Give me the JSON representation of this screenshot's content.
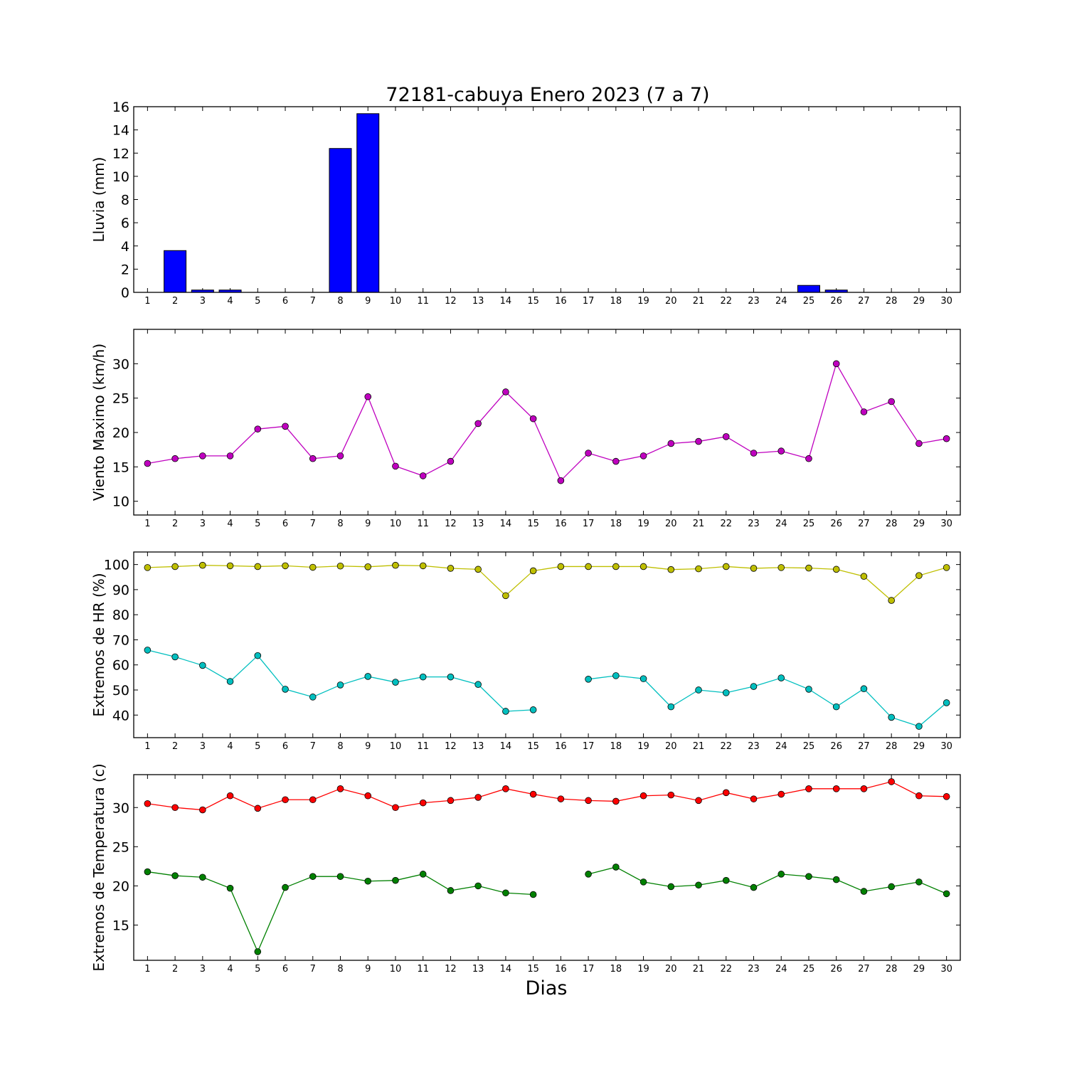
{
  "figure_title": "72181-cabuya Enero 2023  (7 a 7)",
  "xlabel": "Dias",
  "chart_data": [
    {
      "type": "bar",
      "ylabel": "Lluvia (mm)",
      "ylim": [
        0,
        16
      ],
      "yticks": [
        0,
        2,
        4,
        6,
        8,
        10,
        12,
        14,
        16
      ],
      "xlim": [
        0.5,
        30.5
      ],
      "categories": [
        1,
        2,
        3,
        4,
        5,
        6,
        7,
        8,
        9,
        10,
        11,
        12,
        13,
        14,
        15,
        16,
        17,
        18,
        19,
        20,
        21,
        22,
        23,
        24,
        25,
        26,
        27,
        28,
        29,
        30
      ],
      "series": [
        {
          "color": "#0000ff",
          "values": [
            0,
            3.6,
            0.2,
            0.2,
            0,
            0,
            0,
            12.4,
            15.4,
            0,
            0,
            0,
            0,
            0,
            0,
            0,
            0,
            0,
            0,
            0,
            0,
            0,
            0,
            0,
            0.6,
            0.2,
            0,
            0,
            0,
            0
          ]
        }
      ]
    },
    {
      "type": "line",
      "ylabel": "Viento Maximo (km/h)",
      "ylim": [
        8,
        35
      ],
      "yticks": [
        10,
        15,
        20,
        25,
        30
      ],
      "xlim": [
        0.5,
        30.5
      ],
      "x": [
        1,
        2,
        3,
        4,
        5,
        6,
        7,
        8,
        9,
        10,
        11,
        12,
        13,
        14,
        15,
        16,
        17,
        18,
        19,
        20,
        21,
        22,
        23,
        24,
        25,
        26,
        27,
        28,
        29,
        30
      ],
      "series": [
        {
          "color": "#bf00bf",
          "values": [
            15.5,
            16.2,
            16.6,
            16.6,
            20.5,
            20.9,
            16.2,
            16.6,
            25.2,
            15.1,
            13.7,
            15.8,
            21.3,
            25.9,
            22.0,
            13.0,
            17.0,
            15.8,
            16.6,
            18.4,
            18.7,
            19.4,
            17.0,
            17.3,
            16.2,
            30.0,
            23.0,
            24.5,
            18.4,
            19.1
          ]
        }
      ]
    },
    {
      "type": "line",
      "ylabel": "Extremos de HR (%)",
      "ylim": [
        31,
        105
      ],
      "yticks": [
        40,
        50,
        60,
        70,
        80,
        90,
        100
      ],
      "xlim": [
        0.5,
        30.5
      ],
      "x": [
        1,
        2,
        3,
        4,
        5,
        6,
        7,
        8,
        9,
        10,
        11,
        12,
        13,
        14,
        15,
        16,
        17,
        18,
        19,
        20,
        21,
        22,
        23,
        24,
        25,
        26,
        27,
        28,
        29,
        30
      ],
      "series": [
        {
          "color": "#bfbf00",
          "values": [
            98.8,
            99.2,
            99.7,
            99.5,
            99.2,
            99.5,
            98.9,
            99.4,
            99.1,
            99.7,
            99.5,
            98.5,
            98.1,
            87.6,
            97.5,
            99.2,
            99.2,
            99.2,
            99.2,
            98.0,
            98.3,
            99.2,
            98.5,
            98.8,
            98.6,
            98.1,
            95.3,
            85.7,
            95.6,
            98.8
          ]
        },
        {
          "color": "#00bfbf",
          "values": [
            65.9,
            63.2,
            59.8,
            53.4,
            63.7,
            50.3,
            47.2,
            52.0,
            55.4,
            53.1,
            55.2,
            55.2,
            52.2,
            41.5,
            42.1,
            null,
            54.3,
            55.7,
            54.5,
            43.3,
            50.0,
            48.9,
            51.4,
            54.8,
            50.3,
            43.3,
            50.5,
            39.1,
            35.5,
            44.9
          ]
        }
      ]
    },
    {
      "type": "line",
      "ylabel": "Extremos de Temperatura (c)",
      "ylim": [
        10.5,
        34.2
      ],
      "yticks": [
        15,
        20,
        25,
        30
      ],
      "xlim": [
        0.5,
        30.5
      ],
      "x": [
        1,
        2,
        3,
        4,
        5,
        6,
        7,
        8,
        9,
        10,
        11,
        12,
        13,
        14,
        15,
        16,
        17,
        18,
        19,
        20,
        21,
        22,
        23,
        24,
        25,
        26,
        27,
        28,
        29,
        30
      ],
      "series": [
        {
          "color": "#ff0000",
          "values": [
            30.5,
            30.0,
            29.7,
            31.5,
            29.9,
            31.0,
            31.0,
            32.4,
            31.5,
            30.0,
            30.6,
            30.9,
            31.3,
            32.4,
            31.7,
            31.1,
            30.9,
            30.8,
            31.5,
            31.6,
            30.9,
            31.9,
            31.1,
            31.7,
            32.4,
            32.4,
            32.4,
            33.3,
            31.5,
            31.4
          ]
        },
        {
          "color": "#008000",
          "values": [
            21.8,
            21.3,
            21.1,
            19.7,
            11.6,
            19.8,
            21.2,
            21.2,
            20.6,
            20.7,
            21.5,
            19.4,
            20.0,
            19.1,
            18.9,
            null,
            21.5,
            22.4,
            20.5,
            19.9,
            20.1,
            20.7,
            19.8,
            21.5,
            21.2,
            20.8,
            19.3,
            19.9,
            20.5,
            19.0
          ]
        }
      ]
    }
  ]
}
